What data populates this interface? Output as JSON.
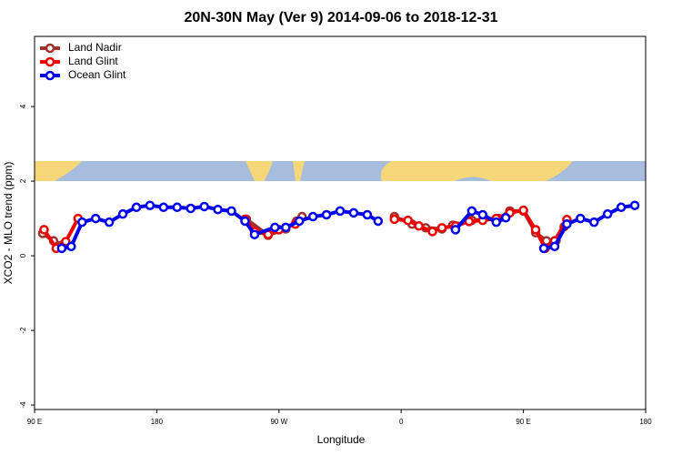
{
  "chart_data": {
    "type": "line",
    "title": "20N-30N May (Ver 9)   2014-09-06 to 2018-12-31",
    "x_label": "Longitude",
    "y_label": "XCO2 - MLO trend (ppm)",
    "xlim": [
      90,
      540
    ],
    "xticks": [
      {
        "value": 90,
        "label": "90 E"
      },
      180,
      {
        "value": 270,
        "label": "90 W"
      },
      {
        "value": 360,
        "label": "0"
      },
      {
        "value": 450,
        "label": "90 E"
      },
      {
        "value": 540,
        "label": "180"
      }
    ],
    "ylim": [
      -4.12,
      5.88
    ],
    "yticks": [
      -4,
      -2,
      0,
      2,
      4
    ],
    "legend": "top-left",
    "series": [
      {
        "name": "Land Nadir",
        "color": "#a0322d",
        "x": [
          96,
          104,
          111,
          180,
          246,
          262,
          275,
          283,
          287,
          320,
          355,
          368,
          378,
          390,
          398,
          412,
          432,
          440,
          450,
          459,
          467,
          474,
          480
        ],
        "values": [
          0.6,
          0.4,
          0.3,
          null,
          0.98,
          0.55,
          0.72,
          0.93,
          1.05,
          null,
          1.05,
          0.85,
          0.75,
          0.72,
          0.82,
          0.95,
          1.0,
          1.2,
          1.2,
          0.62,
          0.4,
          0.4,
          0.78
        ]
      },
      {
        "name": "Land Glint",
        "color": "#ee0000",
        "x": [
          97,
          106,
          113,
          122,
          180,
          245,
          252,
          262,
          270,
          282,
          320,
          355,
          365,
          373,
          383,
          390,
          400,
          410,
          420,
          430,
          440,
          450,
          459,
          466,
          473,
          482
        ],
        "values": [
          0.7,
          0.2,
          0.38,
          1.0,
          null,
          0.98,
          0.65,
          0.57,
          0.7,
          0.85,
          null,
          0.98,
          0.95,
          0.8,
          0.65,
          0.75,
          0.8,
          0.92,
          0.95,
          1.0,
          1.15,
          1.22,
          0.7,
          0.2,
          0.4,
          0.97
        ]
      },
      {
        "name": "Ocean Glint",
        "color": "#0000ee",
        "x": [
          110,
          117,
          125,
          135,
          145,
          155,
          165,
          175,
          185,
          195,
          205,
          215,
          225,
          235,
          245,
          252,
          267,
          275,
          285,
          295,
          305,
          315,
          325,
          335,
          343,
          370,
          400,
          412,
          420,
          430,
          437,
          455,
          465,
          473,
          482,
          492,
          502,
          512,
          522,
          532
        ],
        "values": [
          0.2,
          0.25,
          0.9,
          1.0,
          0.9,
          1.12,
          1.3,
          1.35,
          1.3,
          1.3,
          1.27,
          1.32,
          1.24,
          1.2,
          0.93,
          0.57,
          0.76,
          0.76,
          0.93,
          1.05,
          1.1,
          1.2,
          1.15,
          1.1,
          0.93,
          null,
          0.7,
          1.2,
          1.1,
          0.9,
          1.02,
          null,
          0.2,
          0.25,
          0.85,
          1.0,
          0.9,
          1.12,
          1.3,
          1.35
        ]
      }
    ]
  }
}
